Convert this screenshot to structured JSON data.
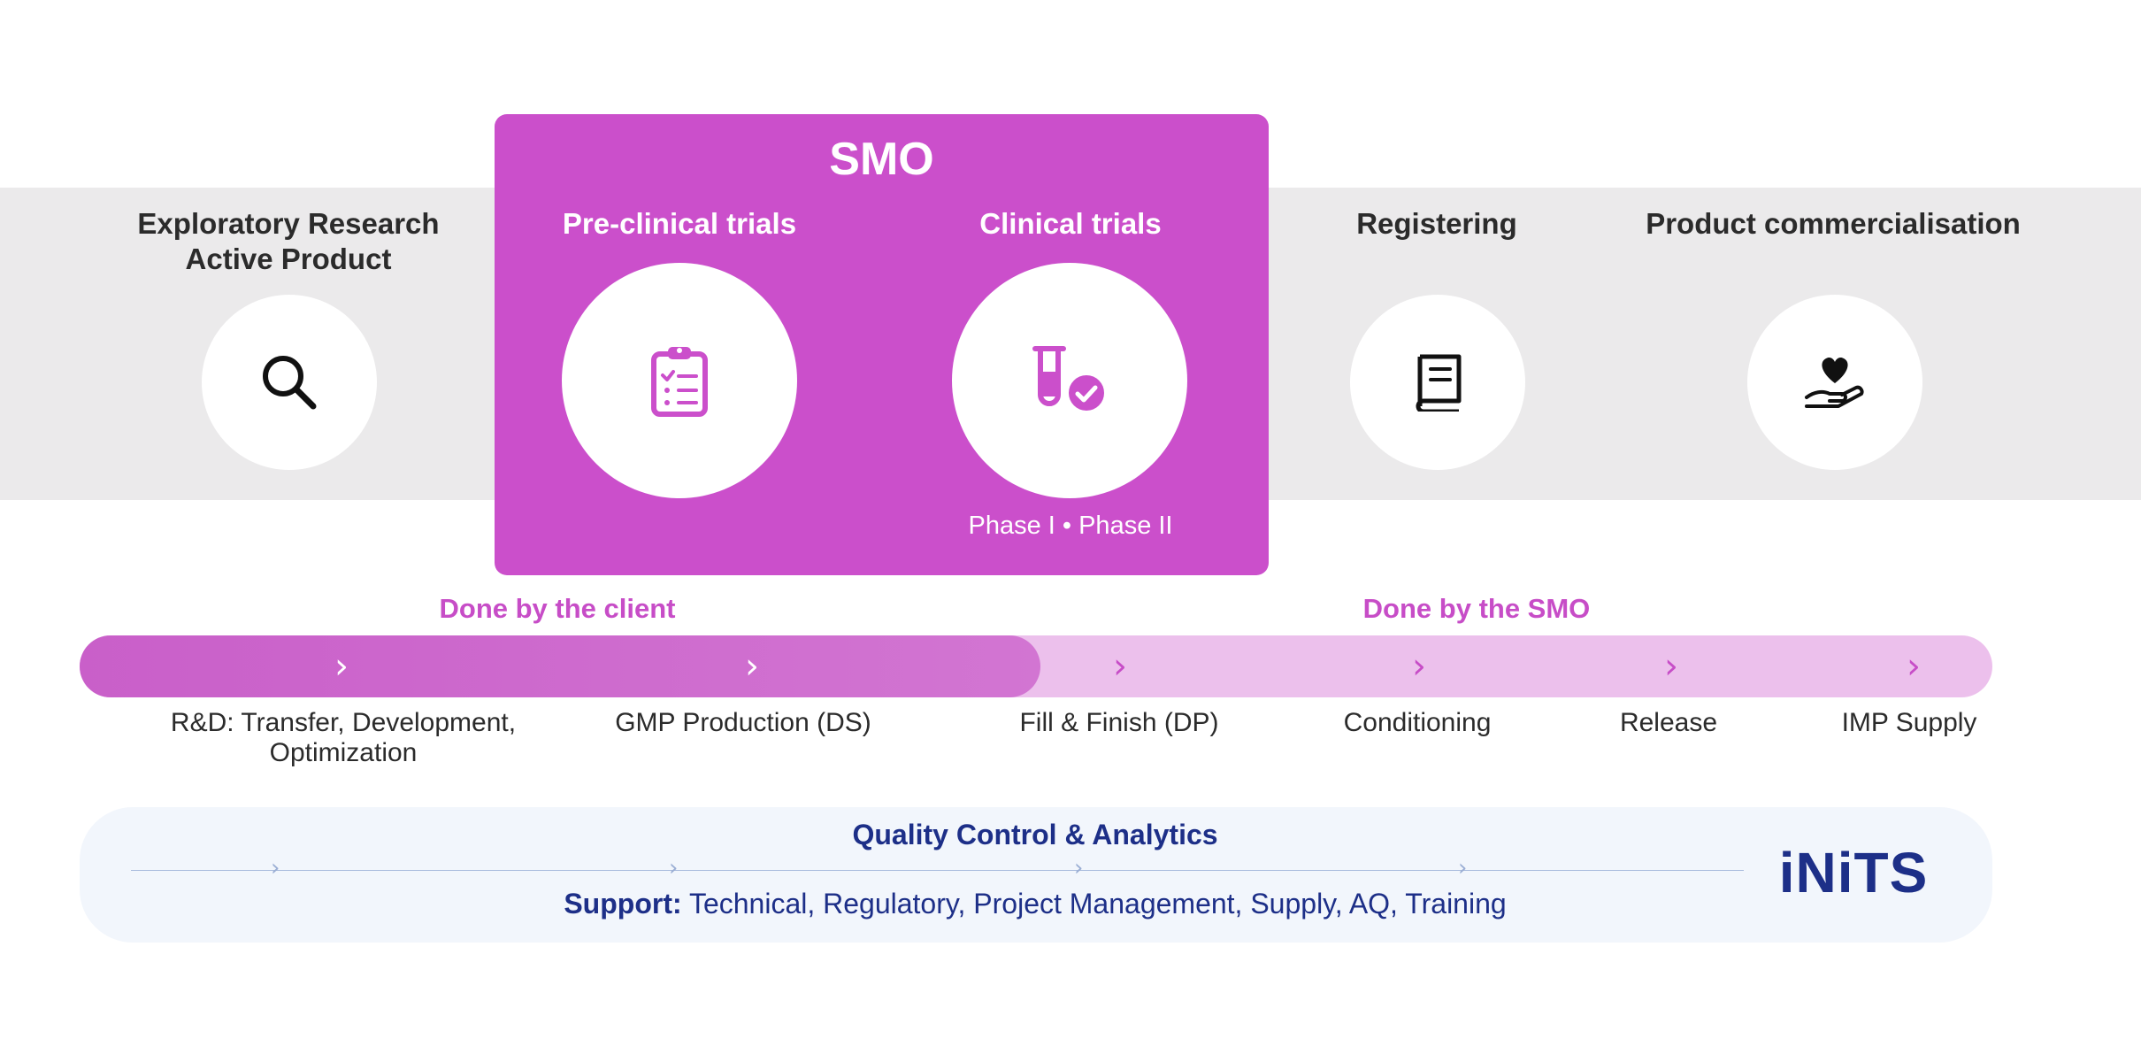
{
  "smo": {
    "title": "SMO"
  },
  "stages": [
    {
      "label_line1": "Exploratory Research",
      "label_line2": "Active Product",
      "icon": "search-icon"
    },
    {
      "label": "Pre-clinical trials",
      "icon": "clipboard-checklist-icon"
    },
    {
      "label": "Clinical trials",
      "icon": "test-tube-check-icon",
      "note": "Phase I • Phase II"
    },
    {
      "label": "Registering",
      "icon": "book-icon"
    },
    {
      "label": "Product commercialisation",
      "icon": "hand-heart-icon"
    }
  ],
  "responsibility": {
    "client": "Done by the client",
    "smo": "Done by the SMO"
  },
  "steps": [
    {
      "line1": "R&D: Transfer, Development,",
      "line2": "Optimization"
    },
    {
      "line1": "GMP Production (DS)"
    },
    {
      "line1": "Fill & Finish (DP)"
    },
    {
      "line1": "Conditioning"
    },
    {
      "line1": "Release"
    },
    {
      "line1": "IMP Supply"
    }
  ],
  "quality": {
    "title": "Quality Control & Analytics",
    "support_label": "Support:",
    "support_text": " Technical, Regulatory, Project Management, Supply, AQ, Training"
  },
  "brand": {
    "logo_text": "iNiTS"
  },
  "colors": {
    "accent": "#cb4fcb",
    "band": "#ebeaeb",
    "bar_light": "#ecc0ec",
    "navy": "#1d2f88",
    "qc_background": "#f2f6fc"
  }
}
